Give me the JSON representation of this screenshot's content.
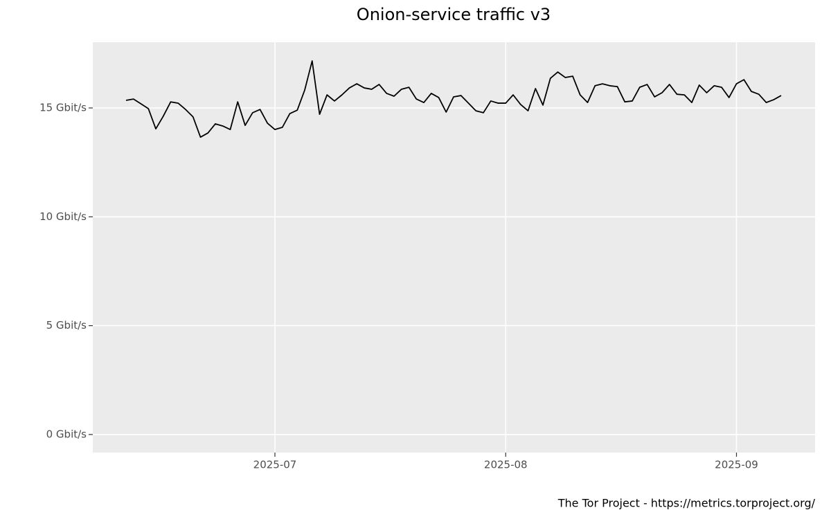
{
  "chart_data": {
    "type": "line",
    "title": "Onion-service traffic v3",
    "caption": "The Tor Project - https://metrics.torproject.org/",
    "categories": [
      null,
      null,
      null,
      null,
      null,
      null,
      null,
      null,
      null,
      null,
      null,
      null,
      null,
      null,
      null,
      null,
      null,
      null,
      null,
      null,
      "2025-07",
      null,
      null,
      null,
      null,
      null,
      null,
      null,
      null,
      null,
      null,
      null,
      null,
      null,
      null,
      null,
      null,
      null,
      null,
      null,
      null,
      null,
      null,
      null,
      null,
      null,
      null,
      null,
      null,
      null,
      null,
      "2025-08",
      null,
      null,
      null,
      null,
      null,
      null,
      null,
      null,
      null,
      null,
      null,
      null,
      null,
      null,
      null,
      null,
      null,
      null,
      null,
      null,
      null,
      null,
      null,
      null,
      null,
      null,
      null,
      null,
      null,
      null,
      "2025-09",
      null,
      null,
      null,
      null,
      null,
      null
    ],
    "values": [
      15.35,
      15.41,
      15.19,
      14.97,
      14.04,
      14.62,
      15.28,
      15.22,
      14.93,
      14.59,
      13.66,
      13.85,
      14.27,
      14.17,
      14.01,
      15.28,
      14.2,
      14.78,
      14.93,
      14.3,
      14.01,
      14.11,
      14.74,
      14.9,
      15.82,
      17.16,
      14.71,
      15.6,
      15.32,
      15.6,
      15.92,
      16.11,
      15.92,
      15.86,
      16.08,
      15.67,
      15.54,
      15.86,
      15.95,
      15.41,
      15.25,
      15.67,
      15.48,
      14.81,
      15.51,
      15.57,
      15.22,
      14.87,
      14.78,
      15.32,
      15.22,
      15.22,
      15.6,
      15.16,
      14.87,
      15.89,
      15.13,
      16.36,
      16.65,
      16.4,
      16.46,
      15.6,
      15.25,
      16.02,
      16.11,
      16.02,
      15.98,
      15.28,
      15.32,
      15.95,
      16.08,
      15.51,
      15.7,
      16.08,
      15.63,
      15.6,
      15.25,
      16.05,
      15.7,
      16.02,
      15.95,
      15.48,
      16.11,
      16.3,
      15.76,
      15.63,
      15.25,
      15.38,
      15.57
    ],
    "color": "#000000",
    "ylim": [
      -0.83,
      18.02
    ],
    "yticks": [
      {
        "value": 0,
        "label": "0 Gbit/s"
      },
      {
        "value": 5,
        "label": "5 Gbit/s"
      },
      {
        "value": 10,
        "label": "10 Gbit/s"
      },
      {
        "value": 15,
        "label": "15 Gbit/s"
      }
    ],
    "grid": true
  }
}
